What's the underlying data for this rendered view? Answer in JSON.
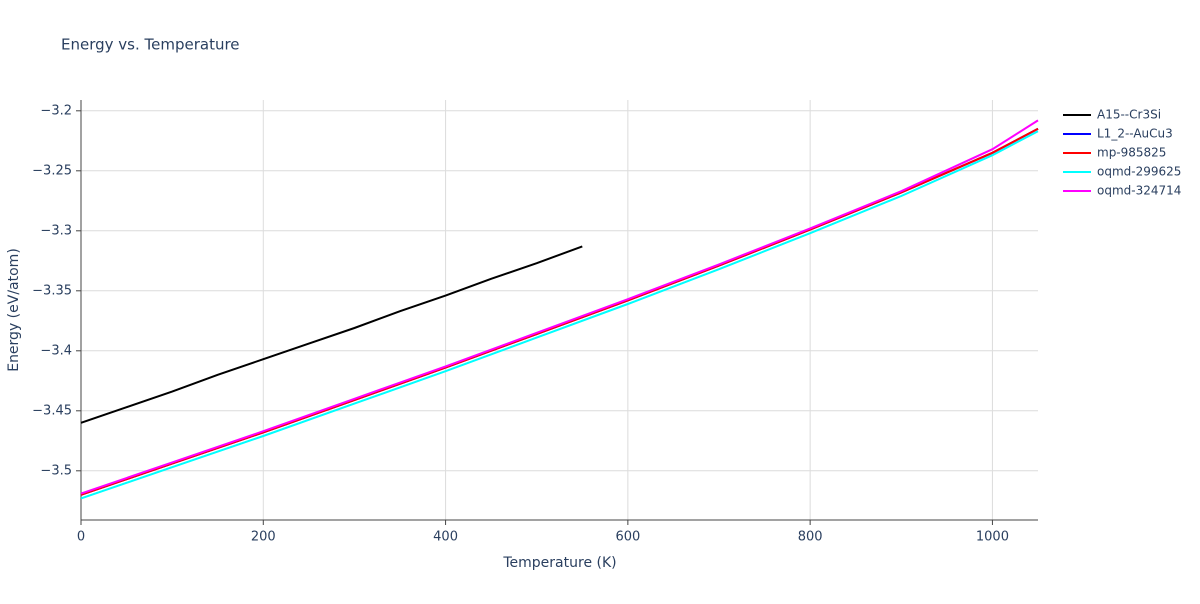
{
  "chart_data": {
    "type": "line",
    "title": "Energy vs. Temperature",
    "x_label": "Temperature (K)",
    "y_label": "Energy (eV/atom)",
    "xlim": [
      0,
      1050
    ],
    "ylim": [
      -3.541,
      -3.191
    ],
    "xticks": [
      0,
      200,
      400,
      600,
      800,
      1000
    ],
    "yticks": [
      {
        "value": -3.2,
        "label": "−3.2"
      },
      {
        "value": -3.25,
        "label": "−3.25"
      },
      {
        "value": -3.3,
        "label": "−3.3"
      },
      {
        "value": -3.35,
        "label": "−3.35"
      },
      {
        "value": -3.4,
        "label": "−3.4"
      },
      {
        "value": -3.45,
        "label": "−3.45"
      },
      {
        "value": -3.5,
        "label": "−3.5"
      }
    ],
    "grid": true,
    "legend": "right",
    "series": [
      {
        "name": "A15--Cr3Si",
        "color": "#000000",
        "x": [
          0,
          50,
          100,
          150,
          200,
          250,
          300,
          350,
          400,
          450,
          500,
          550
        ],
        "values": [
          -3.46,
          -3.447,
          -3.434,
          -3.42,
          -3.407,
          -3.394,
          -3.381,
          -3.367,
          -3.354,
          -3.34,
          -3.327,
          -3.313
        ]
      },
      {
        "name": "L1_2--AuCu3",
        "color": "#0000ff",
        "x": [
          0,
          100,
          200,
          300,
          400,
          500,
          600,
          700,
          800,
          900,
          1000,
          1050
        ],
        "values": [
          -3.52,
          -3.494,
          -3.468,
          -3.441,
          -3.414,
          -3.386,
          -3.358,
          -3.329,
          -3.299,
          -3.268,
          -3.235,
          -3.215
        ]
      },
      {
        "name": "mp-985825",
        "color": "#ff0000",
        "x": [
          0,
          100,
          200,
          300,
          400,
          500,
          600,
          700,
          800,
          900,
          1000,
          1050
        ],
        "values": [
          -3.52,
          -3.494,
          -3.468,
          -3.441,
          -3.414,
          -3.386,
          -3.358,
          -3.329,
          -3.299,
          -3.268,
          -3.235,
          -3.215
        ]
      },
      {
        "name": "oqmd-299625",
        "color": "#00ffff",
        "x": [
          0,
          100,
          200,
          300,
          400,
          500,
          600,
          700,
          800,
          900,
          1000,
          1050
        ],
        "values": [
          -3.523,
          -3.497,
          -3.471,
          -3.444,
          -3.417,
          -3.389,
          -3.361,
          -3.332,
          -3.302,
          -3.271,
          -3.237,
          -3.217
        ]
      },
      {
        "name": "oqmd-324714",
        "color": "#ff00ff",
        "x": [
          0,
          100,
          200,
          300,
          400,
          500,
          600,
          700,
          800,
          900,
          1000,
          1050
        ],
        "values": [
          -3.519,
          -3.493,
          -3.467,
          -3.44,
          -3.413,
          -3.385,
          -3.357,
          -3.328,
          -3.298,
          -3.267,
          -3.232,
          -3.208
        ]
      }
    ]
  }
}
